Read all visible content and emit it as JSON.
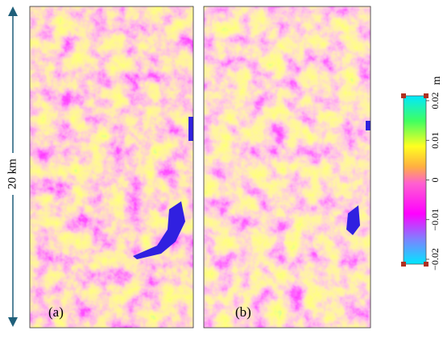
{
  "scale_bar": {
    "label": "20 km"
  },
  "panels": [
    {
      "label": "(a)"
    },
    {
      "label": "(b)"
    }
  ],
  "colorbar": {
    "unit": "m",
    "lim": [
      -0.02,
      0.02
    ],
    "ticks": [
      {
        "value": -0.02,
        "label": "−0.02"
      },
      {
        "value": -0.01,
        "label": "−0.01"
      },
      0,
      0.01,
      0.02
    ]
  }
}
